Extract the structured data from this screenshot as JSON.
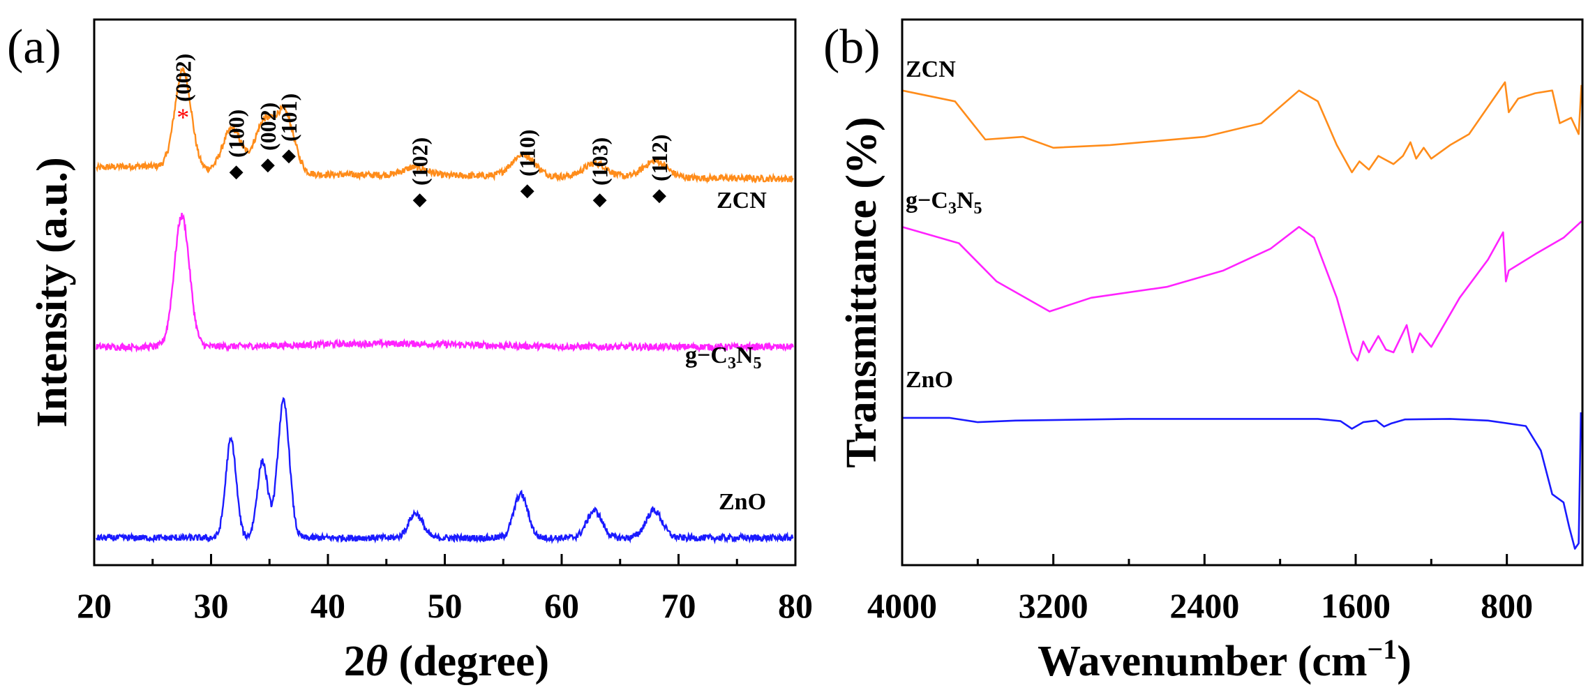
{
  "chart_data": [
    {
      "panel_label": "(a)",
      "type": "line",
      "xlabel_prefix": "2",
      "xlabel_symbol": "θ",
      "xlabel_suffix": " (degree)",
      "ylabel": "Intensity (a.u.)",
      "xlim": [
        20,
        80
      ],
      "xticks": [
        "20",
        "30",
        "40",
        "50",
        "60",
        "70",
        "80"
      ],
      "ylim": [
        0,
        1
      ],
      "colors": {
        "ZCN": "#FF8C1A",
        "g-C3N5": "#FF22FF",
        "ZnO": "#1A1AFF",
        "red_label": "#FF0000"
      },
      "series": [
        {
          "name": "ZCN",
          "label_parts": [
            "ZCN"
          ],
          "baseline": 0.72,
          "peaks": [
            {
              "x": 27.6,
              "height": 0.18,
              "width": 0.7
            },
            {
              "x": 31.8,
              "height": 0.08,
              "width": 0.8
            },
            {
              "x": 34.5,
              "height": 0.09,
              "width": 0.8
            },
            {
              "x": 36.3,
              "height": 0.11,
              "width": 0.8
            },
            {
              "x": 47.5,
              "height": 0.015,
              "width": 1.0
            },
            {
              "x": 56.7,
              "height": 0.04,
              "width": 1.0
            },
            {
              "x": 62.9,
              "height": 0.025,
              "width": 1.0
            },
            {
              "x": 68.0,
              "height": 0.03,
              "width": 1.0
            }
          ]
        },
        {
          "name": "g-C3N5",
          "label_parts": [
            "g−C",
            "3",
            "N",
            "5"
          ],
          "baseline": 0.4,
          "peaks": [
            {
              "x": 27.5,
              "height": 0.24,
              "width": 0.65
            }
          ]
        },
        {
          "name": "ZnO",
          "label_parts": [
            "ZnO"
          ],
          "baseline": 0.05,
          "peaks": [
            {
              "x": 31.7,
              "height": 0.18,
              "width": 0.45
            },
            {
              "x": 34.4,
              "height": 0.14,
              "width": 0.45
            },
            {
              "x": 36.2,
              "height": 0.25,
              "width": 0.5
            },
            {
              "x": 47.5,
              "height": 0.045,
              "width": 0.6
            },
            {
              "x": 56.5,
              "height": 0.08,
              "width": 0.6
            },
            {
              "x": 62.8,
              "height": 0.05,
              "width": 0.65
            },
            {
              "x": 67.9,
              "height": 0.05,
              "width": 0.7
            }
          ]
        }
      ],
      "peak_annotations": [
        {
          "text": "(002)",
          "x": 27.6,
          "marker": "*",
          "color": "red"
        },
        {
          "text": "(100)",
          "x": 31.8,
          "marker": "◆",
          "color": "black"
        },
        {
          "text": "(002)",
          "x": 34.5,
          "marker": "◆",
          "color": "black"
        },
        {
          "text": "(101)",
          "x": 36.3,
          "marker": "◆",
          "color": "black"
        },
        {
          "text": "(102)",
          "x": 47.5,
          "marker": "◆",
          "color": "black"
        },
        {
          "text": "(110)",
          "x": 56.7,
          "marker": "◆",
          "color": "black"
        },
        {
          "text": "(103)",
          "x": 62.9,
          "marker": "◆",
          "color": "black"
        },
        {
          "text": "(112)",
          "x": 68.0,
          "marker": "◆",
          "color": "black"
        }
      ]
    },
    {
      "panel_label": "(b)",
      "type": "line",
      "xlabel": "Wavenumber (cm",
      "xlabel_sup": "−1",
      "xlabel_close": ")",
      "ylabel": "Transmittance (%)",
      "xlim": [
        4000,
        400
      ],
      "xticks": [
        "4000",
        "3200",
        "2400",
        "1600",
        "800"
      ],
      "xtick_values": [
        4000,
        3200,
        2400,
        1600,
        800
      ],
      "ylim": [
        0,
        1
      ],
      "series": [
        {
          "name": "ZCN",
          "label_parts": [
            "ZCN"
          ],
          "points": [
            [
              4000,
              0.87
            ],
            [
              3720,
              0.85
            ],
            [
              3560,
              0.78
            ],
            [
              3360,
              0.785
            ],
            [
              3200,
              0.765
            ],
            [
              2900,
              0.77
            ],
            [
              2400,
              0.785
            ],
            [
              2100,
              0.81
            ],
            [
              1900,
              0.87
            ],
            [
              1800,
              0.85
            ],
            [
              1700,
              0.77
            ],
            [
              1620,
              0.72
            ],
            [
              1580,
              0.74
            ],
            [
              1530,
              0.725
            ],
            [
              1480,
              0.75
            ],
            [
              1400,
              0.735
            ],
            [
              1350,
              0.75
            ],
            [
              1310,
              0.775
            ],
            [
              1280,
              0.745
            ],
            [
              1240,
              0.765
            ],
            [
              1200,
              0.745
            ],
            [
              1100,
              0.77
            ],
            [
              1000,
              0.79
            ],
            [
              880,
              0.85
            ],
            [
              810,
              0.885
            ],
            [
              790,
              0.83
            ],
            [
              740,
              0.855
            ],
            [
              650,
              0.865
            ],
            [
              560,
              0.87
            ],
            [
              520,
              0.81
            ],
            [
              460,
              0.82
            ],
            [
              420,
              0.79
            ],
            [
              405,
              0.88
            ]
          ]
        },
        {
          "name": "g-C3N5",
          "label_parts": [
            "g−C",
            "3",
            "N",
            "5"
          ],
          "points": [
            [
              4000,
              0.62
            ],
            [
              3700,
              0.59
            ],
            [
              3500,
              0.52
            ],
            [
              3220,
              0.465
            ],
            [
              3000,
              0.49
            ],
            [
              2600,
              0.51
            ],
            [
              2300,
              0.54
            ],
            [
              2050,
              0.58
            ],
            [
              1900,
              0.62
            ],
            [
              1820,
              0.6
            ],
            [
              1700,
              0.49
            ],
            [
              1620,
              0.39
            ],
            [
              1590,
              0.375
            ],
            [
              1560,
              0.41
            ],
            [
              1530,
              0.39
            ],
            [
              1480,
              0.42
            ],
            [
              1440,
              0.395
            ],
            [
              1400,
              0.39
            ],
            [
              1330,
              0.44
            ],
            [
              1300,
              0.39
            ],
            [
              1260,
              0.425
            ],
            [
              1200,
              0.4
            ],
            [
              1150,
              0.43
            ],
            [
              1050,
              0.49
            ],
            [
              900,
              0.56
            ],
            [
              820,
              0.61
            ],
            [
              805,
              0.52
            ],
            [
              790,
              0.54
            ],
            [
              650,
              0.57
            ],
            [
              500,
              0.6
            ],
            [
              405,
              0.63
            ]
          ]
        },
        {
          "name": "ZnO",
          "label_parts": [
            "ZnO"
          ],
          "points": [
            [
              4000,
              0.27
            ],
            [
              3750,
              0.27
            ],
            [
              3600,
              0.262
            ],
            [
              3400,
              0.265
            ],
            [
              2800,
              0.268
            ],
            [
              1800,
              0.268
            ],
            [
              1680,
              0.264
            ],
            [
              1620,
              0.25
            ],
            [
              1560,
              0.262
            ],
            [
              1490,
              0.265
            ],
            [
              1450,
              0.254
            ],
            [
              1410,
              0.26
            ],
            [
              1340,
              0.267
            ],
            [
              1100,
              0.268
            ],
            [
              900,
              0.265
            ],
            [
              700,
              0.255
            ],
            [
              620,
              0.21
            ],
            [
              560,
              0.13
            ],
            [
              500,
              0.115
            ],
            [
              470,
              0.07
            ],
            [
              440,
              0.03
            ],
            [
              420,
              0.04
            ],
            [
              408,
              0.28
            ]
          ]
        }
      ]
    }
  ]
}
